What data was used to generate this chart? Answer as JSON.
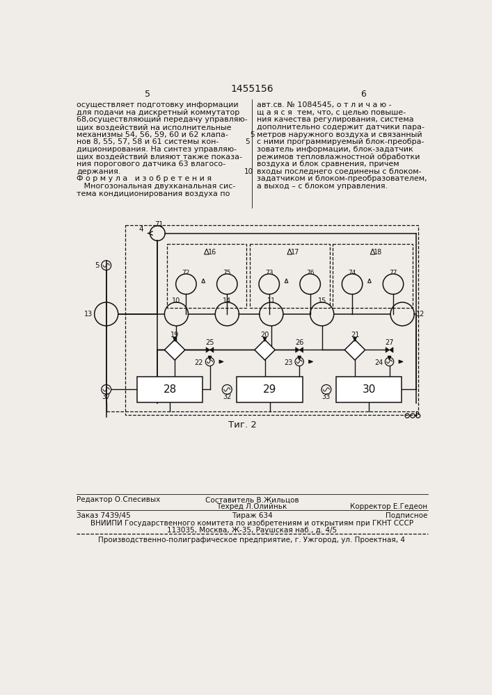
{
  "patent_number": "1455156",
  "page_left": "5",
  "page_right": "6",
  "bg_color": "#f0ede8",
  "text_color": "#111111",
  "diagram_color": "#111111",
  "fig_caption": "Τиг. 2",
  "left_col": [
    "осуществляет подготовку информации",
    "для подачи на дискретный коммутатор",
    "68,осуществляющий передачу управляю-",
    "щих воздействий на исполнительные",
    "механизмы 54, 56, 59, 60 и 62 клапа-",
    "нов 8, 55, 57, 58 и 61 системы кон-",
    "диционирования. На синтез управляю-",
    "щих воздействий влияют также показа-",
    "ния порогового датчика 63 влагосо-",
    "держания.",
    "Ф о р м у л а   и з о б р е т е н и я",
    "   Многозональная двухканальная сис-",
    "тема кондиционирования воздуха по"
  ],
  "right_col": [
    "авт.св. № 1084545, о т л и ч а ю -",
    "щ а я с я  тем, что, с целью повыше-",
    "ния качества регулирования, система",
    "дополнительно содержит датчики пара-",
    "метров наружного воздуха и связанный",
    "с ними программируемый блок-преобра-",
    "зователь информации, блок-задатчик",
    "режимов тепловлажностной обработки",
    "воздуха и блок сравнения, причем",
    "входы последнего соединены с блоком-",
    "задатчиком и блоком-преобразователем,",
    "а выход – с блоком управления."
  ],
  "footer_editor": "Редактор О.Спесивых",
  "footer_composer": "Составитель В.Жильцов",
  "footer_techred": "Техред Л.Олийньк",
  "footer_corrector": "Корректор Е.Гедеон",
  "footer_order": "Заказ 7439/45",
  "footer_tirazh": "Тираж 634",
  "footer_podpisnoe": "Подписное",
  "footer_vniipи": "ВНИИПИ Государственного комитета по изобретениям и открытиям при ГКНТ СССР",
  "footer_address": "113035, Москва, Ж-35, Раушская наб., д. 4/5",
  "footer_prod": "Производственно-полиграфическое предприятие, г. Ужгород, ул. Проектная, 4"
}
